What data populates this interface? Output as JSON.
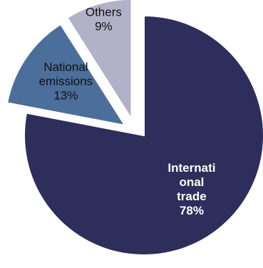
{
  "chart_data": {
    "type": "pie",
    "title": "",
    "exploded": true,
    "slices": [
      {
        "name_lines": [
          "Internati",
          "onal",
          "trade"
        ],
        "pct_label": "78%",
        "value": 78,
        "color": "#2e2e5c",
        "text_color": "#ffffff",
        "bold": true
      },
      {
        "name_lines": [
          "National",
          "emissions"
        ],
        "pct_label": "13%",
        "value": 13,
        "color": "#4b6e9b",
        "text_color": "#111111",
        "bold": false
      },
      {
        "name_lines": [
          "Others"
        ],
        "pct_label": "9%",
        "value": 9,
        "color": "#b3b1c7",
        "text_color": "#111111",
        "bold": false
      }
    ]
  }
}
